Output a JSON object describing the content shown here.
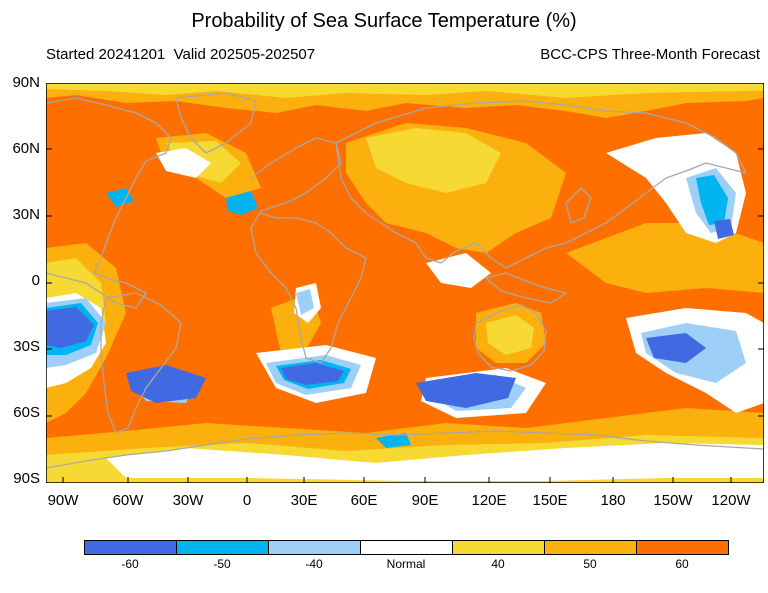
{
  "title": "Probability of Sea Surface Temperature (%)",
  "subtitle_left": "Started 20241201  Valid 202505-202507",
  "subtitle_right": "BCC-CPS Three-Month Forecast",
  "lat_labels": [
    "90N",
    "60N",
    "30N",
    "0",
    "30S",
    "60S",
    "90S"
  ],
  "lon_labels": [
    "90W",
    "60W",
    "30W",
    "0",
    "30E",
    "60E",
    "90E",
    "120E",
    "150E",
    "180",
    "150W",
    "120W"
  ],
  "legend": {
    "items": [
      {
        "label": "-60",
        "color": "#4169e1"
      },
      {
        "label": "-50",
        "color": "#00b4f0"
      },
      {
        "label": "-40",
        "color": "#9ed0f7"
      },
      {
        "label": "Normal",
        "color": "#ffffff"
      },
      {
        "label": "40",
        "color": "#f7d934"
      },
      {
        "label": "50",
        "color": "#fbb00e"
      },
      {
        "label": "60",
        "color": "#ff6f00"
      }
    ]
  },
  "colors": {
    "coastline": "#a8a8a8",
    "background": "#ff6f00"
  }
}
